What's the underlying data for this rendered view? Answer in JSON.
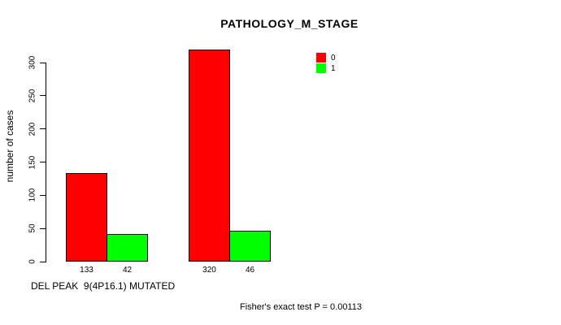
{
  "chart_data": {
    "type": "bar",
    "title": "PATHOLOGY_M_STAGE",
    "ylabel": "number of cases",
    "xlabel": "DEL PEAK  9(4P16.1) MUTATED",
    "footnote": "Fisher's exact test P = 0.00113",
    "series": [
      {
        "name": "0",
        "color": "#ff0000",
        "values": [
          133,
          320
        ]
      },
      {
        "name": "1",
        "color": "#00ff00",
        "values": [
          42,
          46
        ]
      }
    ],
    "value_labels": [
      "133",
      "42",
      "320",
      "46"
    ],
    "yticks": [
      0,
      50,
      100,
      150,
      200,
      250,
      300
    ],
    "ylim": [
      0,
      320
    ],
    "grid": false,
    "legend_position": "top-right",
    "colors": {
      "bar_border": "#000000",
      "axis": "#000000",
      "text": "#000000",
      "background": "#ffffff"
    }
  }
}
